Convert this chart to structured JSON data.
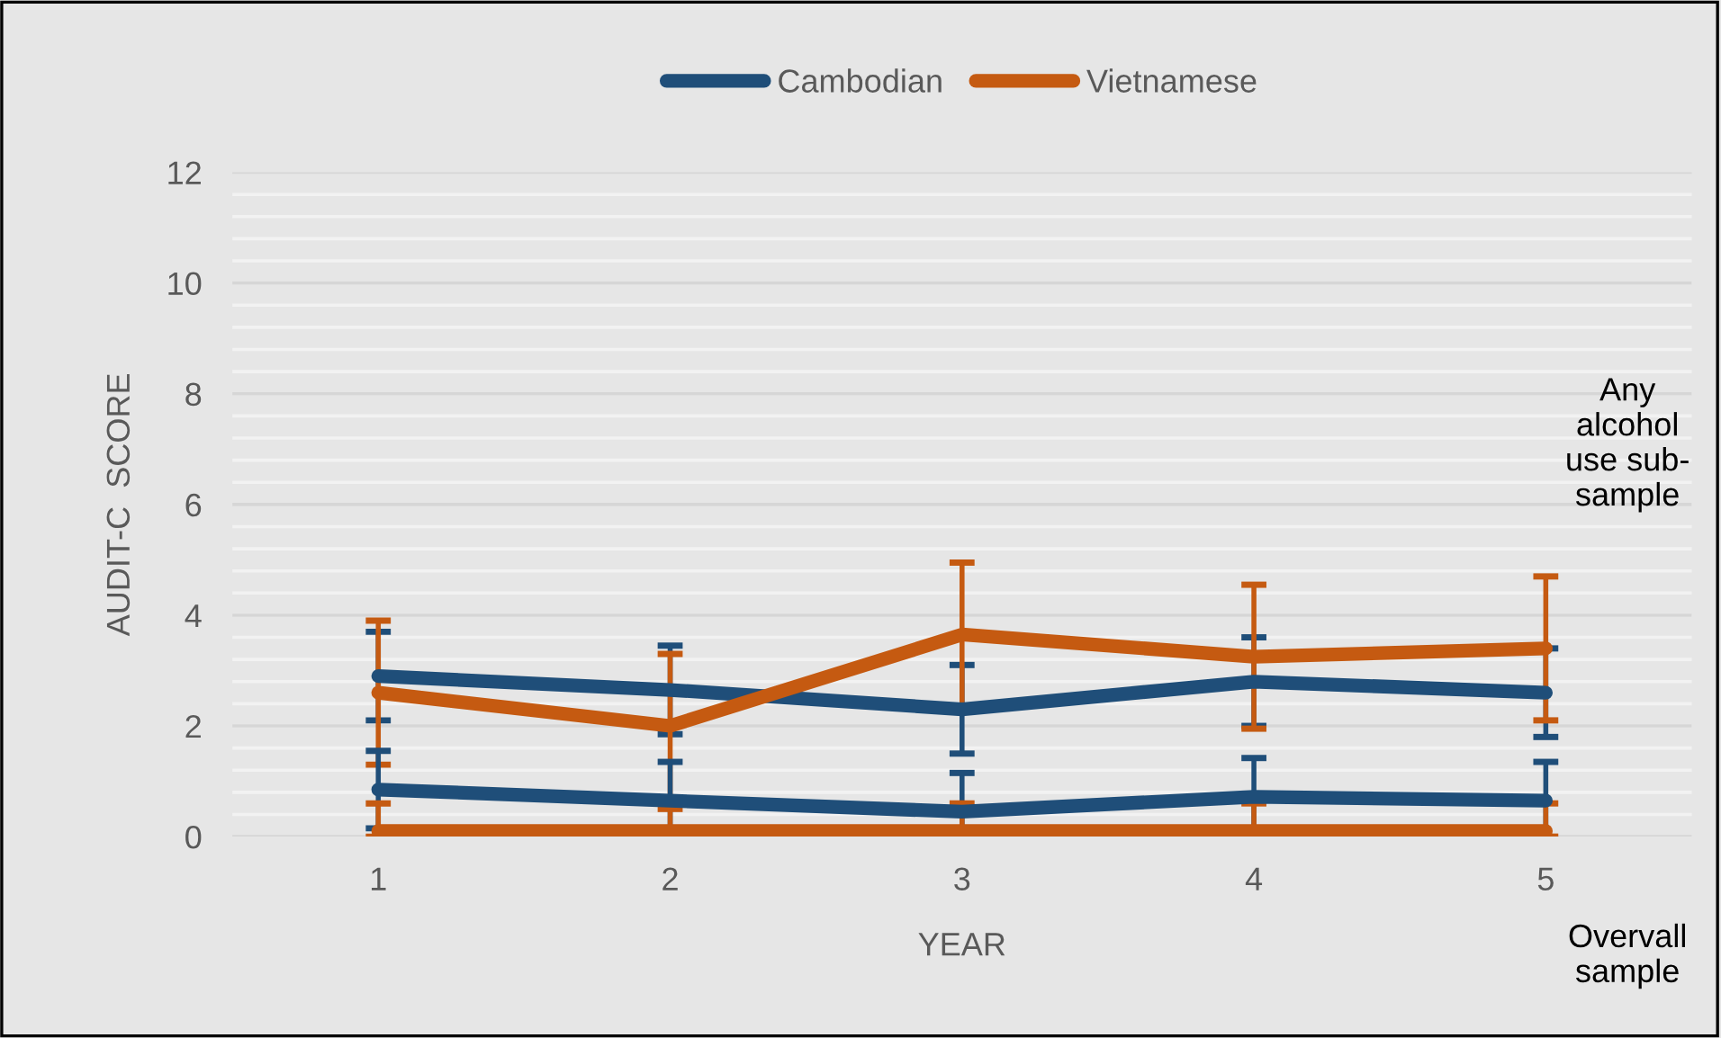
{
  "chart_data": {
    "type": "line",
    "xlabel": "YEAR",
    "ylabel": "AUDIT-C  SCORE",
    "categories": [
      "1",
      "2",
      "3",
      "4",
      "5"
    ],
    "series": [
      {
        "name": "Cambodian",
        "color": "#1f4e79",
        "values": [
          2.9,
          2.65,
          2.3,
          2.8,
          2.6
        ],
        "errors": [
          0.8,
          0.8,
          0.8,
          0.8,
          0.8
        ]
      },
      {
        "name": "Vietnamese",
        "color": "#c55a11",
        "values": [
          2.6,
          2.0,
          3.65,
          3.25,
          3.4
        ],
        "errors": [
          1.3,
          1.3,
          1.3,
          1.3,
          1.3
        ]
      },
      {
        "color": "#1f4e79",
        "values": [
          0.85,
          0.65,
          0.45,
          0.72,
          0.65
        ],
        "errors": [
          0.7,
          0.7,
          [
            0,
            1.15
          ],
          0.7,
          0.7
        ]
      },
      {
        "color": "#c55a11",
        "values": [
          0.1,
          0.1,
          0.1,
          0.1,
          0.1
        ],
        "errors": [
          [
            0,
            0.6
          ],
          [
            0,
            0.5
          ],
          [
            0,
            0.6
          ],
          [
            0,
            0.6
          ],
          [
            0,
            0.6
          ]
        ]
      }
    ],
    "ylim": [
      0,
      12
    ],
    "yticks": [
      0,
      2,
      4,
      6,
      8,
      10,
      12
    ],
    "annotations": [
      "Any\nalcohol\nuse sub-\nsample",
      "Overvall\nsample"
    ],
    "grid": "y",
    "legend": "top",
    "marker": "none",
    "line_style": "solid"
  }
}
